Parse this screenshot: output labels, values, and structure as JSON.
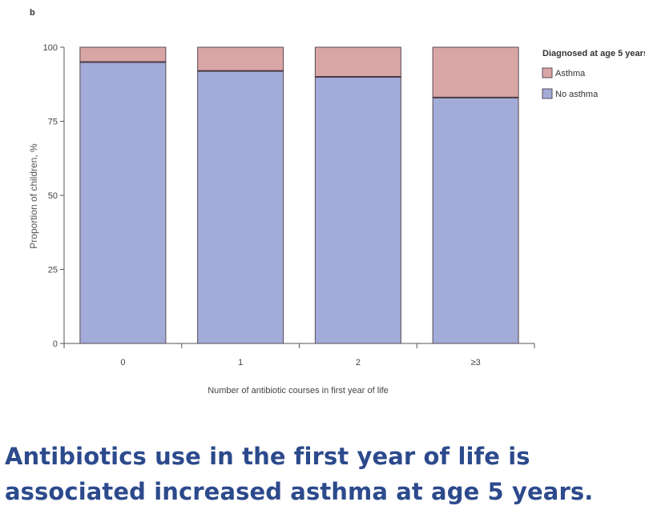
{
  "panel_label": "b",
  "caption": {
    "line1": "Antibiotics use in the first year of life is",
    "line2": "associated increased asthma at age 5 years."
  },
  "colors": {
    "asthma": "#d9a6a6",
    "no_asthma": "#a3acd8",
    "bar_border": "#5a4a55",
    "axis": "#555555",
    "caption": "#2c4a8c"
  },
  "chart_data": {
    "type": "bar",
    "stacked": true,
    "title": "",
    "xlabel": "Number of antibiotic courses in first year of life",
    "ylabel": "Proportion of children, %",
    "ylim": [
      0,
      100
    ],
    "yticks": [
      "0",
      "25",
      "50",
      "75",
      "100"
    ],
    "ytick_values": [
      0,
      25,
      50,
      75,
      100
    ],
    "categories": [
      "0",
      "1",
      "2",
      "≥3"
    ],
    "series": [
      {
        "name": "No asthma",
        "values": [
          95,
          92,
          90,
          83
        ]
      },
      {
        "name": "Asthma",
        "values": [
          5,
          8,
          10,
          17
        ]
      }
    ],
    "legend": {
      "title": "Diagnosed at age 5 years",
      "placement": "top-right",
      "entries": [
        "Asthma",
        "No asthma"
      ]
    }
  }
}
